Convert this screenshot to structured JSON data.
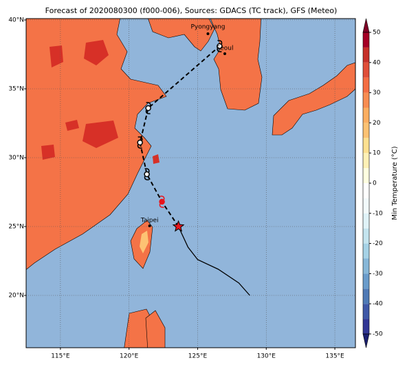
{
  "title": "Forecast of 2020080300 (f000-006), Sources: GDACS (TC track), GFS (Meteo)",
  "map": {
    "xlim": [
      112.5,
      136.5
    ],
    "ylim": [
      16.2,
      40.1
    ],
    "xticks": [
      {
        "value": 115,
        "label": "115°E"
      },
      {
        "value": 120,
        "label": "120°E"
      },
      {
        "value": 125,
        "label": "125°E"
      },
      {
        "value": 130,
        "label": "130°E"
      },
      {
        "value": 135,
        "label": "135°E"
      }
    ],
    "yticks": [
      {
        "value": 20,
        "label": "20°N"
      },
      {
        "value": 25,
        "label": "25°N"
      },
      {
        "value": 30,
        "label": "30°N"
      },
      {
        "value": 35,
        "label": "35°N"
      },
      {
        "value": 40,
        "label": "40°N"
      }
    ],
    "ocean_color": "#91b5da",
    "cities": [
      {
        "name": "Pyongyang",
        "lon": 125.75,
        "lat": 39.0
      },
      {
        "name": "Seoul",
        "lon": 126.98,
        "lat": 37.55
      },
      {
        "name": "Taipei",
        "lon": 121.5,
        "lat": 25.05
      }
    ],
    "track_observed": {
      "lon": [
        128.8,
        128.0,
        126.5,
        125.0,
        124.3,
        123.6
      ],
      "lat": [
        20.0,
        20.9,
        21.9,
        22.6,
        23.5,
        25.0
      ]
    },
    "track_forecast": {
      "lon": [
        123.6,
        122.4,
        121.3,
        120.8,
        121.4,
        126.6
      ],
      "lat": [
        25.0,
        26.8,
        28.8,
        31.1,
        33.6,
        38.1
      ]
    }
  },
  "colorbar": {
    "label": "Min Temperature (°C)",
    "lim": [
      -50,
      50
    ],
    "ticks": [
      -50,
      -40,
      -30,
      -20,
      -10,
      0,
      10,
      20,
      30,
      40,
      50
    ],
    "levels": [
      -50,
      -45,
      -40,
      -35,
      -30,
      -25,
      -20,
      -15,
      -10,
      -5,
      0,
      5,
      10,
      15,
      20,
      25,
      30,
      35,
      40,
      45,
      50
    ],
    "colors": [
      "#313695",
      "#3f58a7",
      "#4f7ab6",
      "#6a9ccb",
      "#87b7d8",
      "#a6d2e6",
      "#c4e4ef",
      "#e0f3f8",
      "#f2fafc",
      "#ffffff",
      "#ffffe0",
      "#fff1b6",
      "#fee090",
      "#fdc273",
      "#fdae61",
      "#f88d52",
      "#f46d43",
      "#e04f39",
      "#c6302a",
      "#a50026"
    ],
    "under_color": "#1a1f70",
    "over_color": "#800026"
  }
}
